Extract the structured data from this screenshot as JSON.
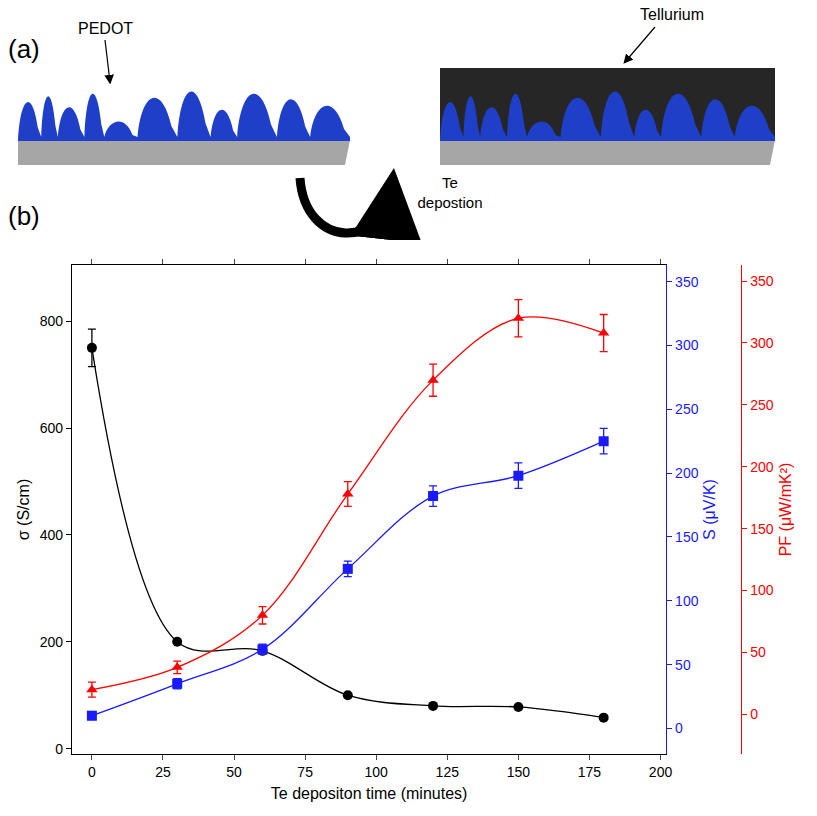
{
  "panel_a": {
    "label": "(a)",
    "left_label": "PEDOT",
    "right_label": "Tellurium",
    "arrow_label": "Te depostion"
  },
  "panel_b": {
    "label": "(b)"
  },
  "chart_data": {
    "type": "scatter",
    "x": [
      0,
      30,
      60,
      90,
      120,
      150,
      180
    ],
    "x_label": "Te depositon time (minutes)",
    "y_label": "σ (S/cm)",
    "y2_label": "S (μV/K)",
    "y3_label": "PF (μW/mK²)",
    "xlim": [
      -7,
      202
    ],
    "xticks": [
      0,
      25,
      50,
      75,
      100,
      125,
      150,
      175,
      200
    ],
    "ylim": [
      -10,
      905
    ],
    "yticks": [
      0,
      200,
      400,
      600,
      800
    ],
    "y2lim": [
      -20,
      363
    ],
    "y2ticks": [
      0,
      50,
      100,
      150,
      200,
      250,
      300,
      350
    ],
    "y3lim": [
      -32,
      363
    ],
    "y3ticks": [
      0,
      50,
      100,
      150,
      200,
      250,
      300,
      350
    ],
    "grid": false,
    "series": [
      {
        "color": "#000000",
        "marker": "circle",
        "line_style": "spline",
        "axis": "y",
        "values": [
          750,
          200,
          183,
          100,
          80,
          78,
          58
        ],
        "errors": [
          35,
          0,
          0,
          0,
          0,
          0,
          0
        ]
      },
      {
        "color": "#1a1aff",
        "marker": "square",
        "line_style": "spline",
        "axis": "y2",
        "values": [
          10,
          35,
          62,
          125,
          182,
          198,
          225
        ],
        "errors": [
          3,
          4,
          4,
          6,
          8,
          10,
          10
        ]
      },
      {
        "color": "#ff0000",
        "marker": "triangle-up",
        "line_style": "spline",
        "axis": "y3",
        "values": [
          20,
          38,
          80,
          178,
          270,
          320,
          308
        ],
        "errors": [
          6,
          5,
          7,
          10,
          13,
          15,
          15
        ]
      }
    ]
  }
}
